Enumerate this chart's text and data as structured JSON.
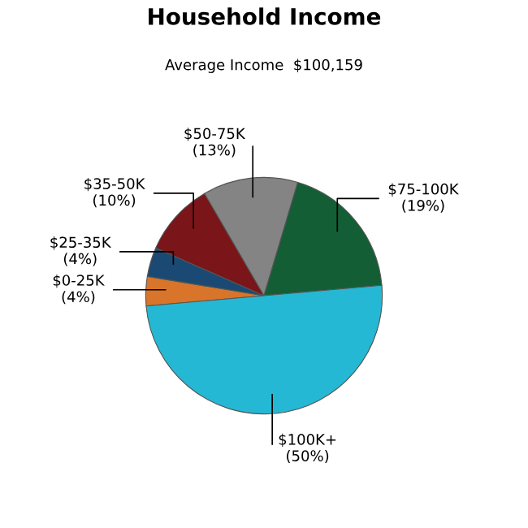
{
  "chart_data": {
    "type": "pie",
    "title": "Household Income",
    "subtitle": "Average Income  $100,159",
    "categories": [
      "$0-25K",
      "$25-35K",
      "$35-50K",
      "$50-75K",
      "$75-100K",
      "$100K+"
    ],
    "values": [
      4,
      4,
      10,
      13,
      19,
      50
    ],
    "value_labels": [
      "(4%)",
      "(4%)",
      "(10%)",
      "(13%)",
      "(19%)",
      "(50%)"
    ],
    "colors": [
      "#d8752a",
      "#1a4a73",
      "#7a1519",
      "#848484",
      "#145e36",
      "#25b8d4"
    ],
    "legend": false
  }
}
